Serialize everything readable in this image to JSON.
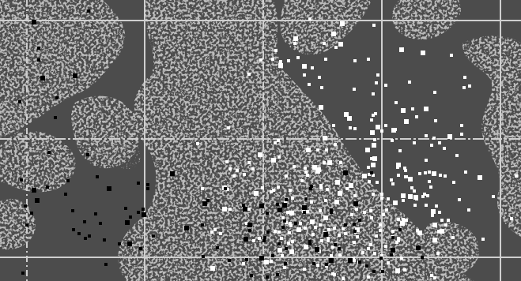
{
  "scene": {
    "colors": {
      "background": "#4c4c4c",
      "terrain": "#7f7f7f",
      "terrain_dark": "#5f5f5f",
      "grid": "#cfcfcf",
      "white_points": "#ffffff",
      "black_points": "#000000"
    },
    "grid": {
      "columns": 4,
      "rows": 2,
      "style": "solid"
    }
  }
}
